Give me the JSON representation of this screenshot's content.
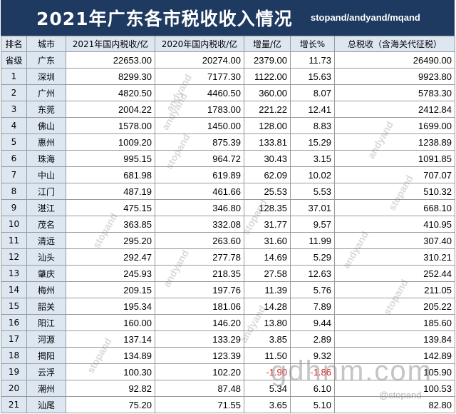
{
  "header": {
    "title": "2021年广东各市税收收入情况",
    "credit": "stopand/andyand/mqand"
  },
  "table": {
    "columns": [
      "排名",
      "城市",
      "2021年国内税收/亿",
      "2020年国内税收/亿",
      "增量/亿",
      "增长%",
      "总税收（含海关代征税）"
    ],
    "rows": [
      {
        "rank": "省级",
        "city": "广东",
        "y2021": "22653.00",
        "y2020": "20274.00",
        "delta": "2379.00",
        "growth": "11.73",
        "total": "26490.00"
      },
      {
        "rank": "1",
        "city": "深圳",
        "y2021": "8299.30",
        "y2020": "7177.30",
        "delta": "1122.00",
        "growth": "15.63",
        "total": "9923.80"
      },
      {
        "rank": "2",
        "city": "广州",
        "y2021": "4820.50",
        "y2020": "4460.50",
        "delta": "360.00",
        "growth": "8.07",
        "total": "5783.30"
      },
      {
        "rank": "3",
        "city": "东莞",
        "y2021": "2004.22",
        "y2020": "1783.00",
        "delta": "221.22",
        "growth": "12.41",
        "total": "2412.84"
      },
      {
        "rank": "4",
        "city": "佛山",
        "y2021": "1578.00",
        "y2020": "1450.00",
        "delta": "128.00",
        "growth": "8.83",
        "total": "1699.00"
      },
      {
        "rank": "5",
        "city": "惠州",
        "y2021": "1009.20",
        "y2020": "875.39",
        "delta": "133.81",
        "growth": "15.29",
        "total": "1238.89"
      },
      {
        "rank": "6",
        "city": "珠海",
        "y2021": "995.15",
        "y2020": "964.72",
        "delta": "30.43",
        "growth": "3.15",
        "total": "1091.85"
      },
      {
        "rank": "7",
        "city": "中山",
        "y2021": "681.98",
        "y2020": "619.89",
        "delta": "62.09",
        "growth": "10.02",
        "total": "707.07"
      },
      {
        "rank": "8",
        "city": "江门",
        "y2021": "487.19",
        "y2020": "461.66",
        "delta": "25.53",
        "growth": "5.53",
        "total": "510.32"
      },
      {
        "rank": "9",
        "city": "湛江",
        "y2021": "475.15",
        "y2020": "346.80",
        "delta": "128.35",
        "growth": "37.01",
        "total": "668.10"
      },
      {
        "rank": "10",
        "city": "茂名",
        "y2021": "363.85",
        "y2020": "332.08",
        "delta": "31.77",
        "growth": "9.57",
        "total": "410.95"
      },
      {
        "rank": "11",
        "city": "清远",
        "y2021": "295.20",
        "y2020": "263.60",
        "delta": "31.60",
        "growth": "11.99",
        "total": "307.40"
      },
      {
        "rank": "12",
        "city": "汕头",
        "y2021": "292.47",
        "y2020": "277.78",
        "delta": "14.69",
        "growth": "5.29",
        "total": "310.21"
      },
      {
        "rank": "13",
        "city": "肇庆",
        "y2021": "245.93",
        "y2020": "218.35",
        "delta": "27.58",
        "growth": "12.63",
        "total": "252.44"
      },
      {
        "rank": "14",
        "city": "梅州",
        "y2021": "209.15",
        "y2020": "197.76",
        "delta": "11.39",
        "growth": "5.76",
        "total": "211.05"
      },
      {
        "rank": "15",
        "city": "韶关",
        "y2021": "195.34",
        "y2020": "181.06",
        "delta": "14.28",
        "growth": "7.89",
        "total": "205.22"
      },
      {
        "rank": "16",
        "city": "阳江",
        "y2021": "160.00",
        "y2020": "146.20",
        "delta": "13.80",
        "growth": "9.44",
        "total": "185.60"
      },
      {
        "rank": "17",
        "city": "河源",
        "y2021": "137.14",
        "y2020": "133.29",
        "delta": "3.85",
        "growth": "2.89",
        "total": "139.84"
      },
      {
        "rank": "18",
        "city": "揭阳",
        "y2021": "134.89",
        "y2020": "123.39",
        "delta": "11.50",
        "growth": "9.32",
        "total": "142.89"
      },
      {
        "rank": "19",
        "city": "云浮",
        "y2021": "100.30",
        "y2020": "102.20",
        "delta": "-1.90",
        "growth": "-1.86",
        "total": "105.90"
      },
      {
        "rank": "20",
        "city": "潮州",
        "y2021": "92.82",
        "y2020": "87.48",
        "delta": "5.34",
        "growth": "6.10",
        "total": "100.53"
      },
      {
        "rank": "21",
        "city": "汕尾",
        "y2021": "75.20",
        "y2020": "71.55",
        "delta": "3.65",
        "growth": "5.10",
        "total": "82.80"
      }
    ]
  },
  "watermarks": {
    "word_a": "andyand",
    "word_b": "stopand",
    "site": "gdhnm.com",
    "handle": "@stopand"
  },
  "colors": {
    "title_bg": "#1f3a60",
    "header_bg": "#dde7f2",
    "negative": "#dd2222"
  }
}
